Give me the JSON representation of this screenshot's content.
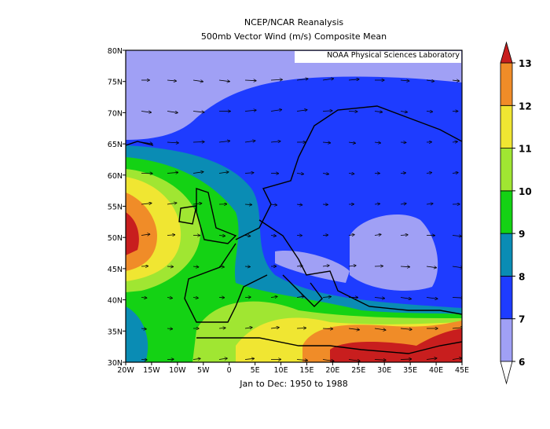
{
  "header": {
    "title": "NCEP/NCAR Reanalysis",
    "subtitle": "500mb Vector Wind (m/s) Composite Mean"
  },
  "map": {
    "credit": "NOAA Physical Sciences Laboratory",
    "lat_labels": [
      "80N",
      "75N",
      "70N",
      "65N",
      "60N",
      "55N",
      "50N",
      "45N",
      "40N",
      "35N",
      "30N"
    ],
    "lon_labels": [
      "20W",
      "15W",
      "10W",
      "5W",
      "0",
      "5E",
      "10E",
      "15E",
      "20E",
      "25E",
      "30E",
      "35E",
      "40E",
      "45E"
    ],
    "period": "Jan to Dec: 1950 to 1988"
  },
  "colorbar": {
    "levels": [
      6,
      7,
      8,
      9,
      10,
      11,
      12,
      13
    ],
    "colors": [
      "#ffffff",
      "#a0a0f5",
      "#1e3cff",
      "#0a8cb4",
      "#14d214",
      "#a0e632",
      "#f0e632",
      "#f08c28",
      "#c81e1e"
    ]
  }
}
